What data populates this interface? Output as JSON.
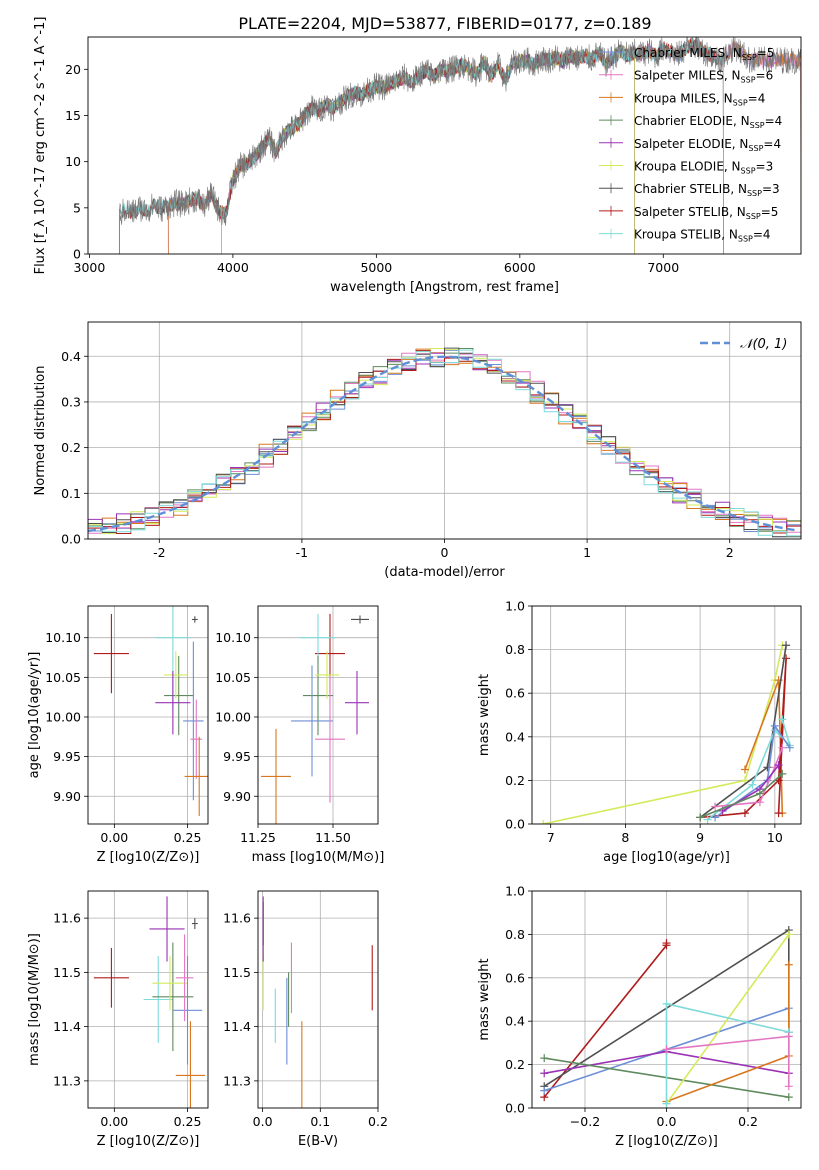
{
  "colors": {
    "Chabrier MILES": "#6d8fd6",
    "Salpeter MILES": "#e377c2",
    "Kroupa MILES": "#d8771f",
    "Chabrier ELODIE": "#5f8a5f",
    "Salpeter ELODIE": "#9a32b5",
    "Kroupa ELODIE": "#d4ea5a",
    "Chabrier STELIB": "#505050",
    "Salpeter STELIB": "#b01c1c",
    "Kroupa STELIB": "#7fdada",
    "normal": "#5f8fd6"
  },
  "chart_data": [
    {
      "type": "line",
      "title": "PLATE=2204, MJD=53877, FIBERID=0177, z=0.189",
      "xlabel": "wavelength [Angstrom, rest frame]",
      "ylabel": "Flux [f_λ 10^-17 erg cm^-2 s^-1 A^-1]",
      "xlim": [
        2990,
        7960
      ],
      "ylim": [
        0,
        23.5
      ],
      "xticks": [
        3000,
        4000,
        5000,
        6000,
        7000
      ],
      "yticks": [
        0,
        5,
        10,
        15,
        20
      ],
      "legend_position": "right",
      "legend": [
        {
          "key": "Chabrier MILES",
          "text": "Chabrier MILES, N",
          "nssp": "=5"
        },
        {
          "key": "Salpeter MILES",
          "text": "Salpeter MILES, N",
          "nssp": "=6"
        },
        {
          "key": "Kroupa MILES",
          "text": "Kroupa MILES, N",
          "nssp": "=4"
        },
        {
          "key": "Chabrier ELODIE",
          "text": "Chabrier ELODIE, N",
          "nssp": "=4"
        },
        {
          "key": "Salpeter ELODIE",
          "text": "Salpeter ELODIE, N",
          "nssp": "=4"
        },
        {
          "key": "Kroupa ELODIE",
          "text": "Kroupa ELODIE, N",
          "nssp": "=3"
        },
        {
          "key": "Chabrier STELIB",
          "text": "Chabrier STELIB, N",
          "nssp": "=3"
        },
        {
          "key": "Salpeter STELIB",
          "text": "Salpeter STELIB, N",
          "nssp": "=5"
        },
        {
          "key": "Kroupa STELIB",
          "text": "Kroupa STELIB, N",
          "nssp": "=4"
        }
      ],
      "legend_subscript": "SSP",
      "data_spectrum": {
        "x": [
          3210,
          3250,
          3300,
          3350,
          3400,
          3450,
          3500,
          3550,
          3600,
          3650,
          3700,
          3750,
          3800,
          3850,
          3900,
          3950,
          4000,
          4050,
          4100,
          4150,
          4200,
          4250,
          4300,
          4350,
          4400,
          4450,
          4500,
          4550,
          4600,
          4650,
          4700,
          4750,
          4800,
          4850,
          4900,
          4950,
          5000,
          5050,
          5100,
          5150,
          5200,
          5250,
          5300,
          5350,
          5400,
          5450,
          5500,
          5550,
          5600,
          5650,
          5700,
          5750,
          5800,
          5850,
          5900,
          5950,
          6000,
          6050,
          6100,
          6150,
          6200,
          6250,
          6300,
          6350,
          6400,
          6450,
          6500,
          6550,
          6600,
          6650,
          6700,
          6750,
          6800,
          6850,
          6900,
          6950,
          7000,
          7100,
          7200,
          7300,
          7400,
          7500,
          7600
        ],
        "y": [
          4.2,
          4.8,
          4.5,
          5.0,
          4.7,
          5.3,
          4.9,
          5.2,
          5.5,
          5.4,
          5.8,
          6.0,
          5.2,
          6.5,
          4.8,
          4.2,
          8.0,
          9.5,
          9.8,
          10.5,
          11.5,
          12.5,
          11.0,
          12.8,
          13.5,
          14.0,
          15.0,
          15.8,
          15.5,
          16.2,
          15.8,
          16.5,
          17.0,
          17.5,
          17.2,
          17.8,
          18.2,
          18.0,
          18.5,
          18.8,
          19.2,
          18.5,
          19.5,
          19.8,
          19.2,
          20.0,
          19.8,
          20.2,
          20.5,
          20.1,
          19.5,
          20.8,
          19.2,
          20.5,
          18.8,
          20.6,
          20.9,
          21.0,
          20.5,
          21.2,
          21.0,
          21.3,
          20.8,
          21.5,
          21.2,
          21.4,
          21.1,
          21.8,
          20.6,
          21.3,
          22.0,
          21.5,
          21.8,
          21.6,
          22.0,
          21.4,
          22.3,
          21.5,
          22.8,
          21.8,
          21.0,
          22.5,
          21.0
        ]
      },
      "model_start": {
        "Chabrier MILES": 3550,
        "Salpeter MILES": 3550,
        "Kroupa MILES": 3550,
        "Chabrier ELODIE": 3920,
        "Salpeter ELODIE": 3920,
        "Kroupa ELODIE": 3920,
        "Chabrier STELIB": 3210,
        "Salpeter STELIB": 3210,
        "Kroupa STELIB": 3210
      },
      "model_end": {
        "Chabrier MILES": 7960,
        "Salpeter MILES": 7960,
        "Kroupa MILES": 7960,
        "Chabrier ELODIE": 6800,
        "Salpeter ELODIE": 6800,
        "Kroupa ELODIE": 6800,
        "Chabrier STELIB": 7420,
        "Salpeter STELIB": 7420,
        "Kroupa STELIB": 7420
      }
    },
    {
      "type": "histogram",
      "xlabel": "(data-model)/error",
      "ylabel": "Normed distribution",
      "xlim": [
        -2.5,
        2.5
      ],
      "ylim": [
        0,
        0.475
      ],
      "xticks": [
        -2,
        -1,
        0,
        1,
        2
      ],
      "yticks": [
        0.0,
        0.1,
        0.2,
        0.3,
        0.4
      ],
      "grid": true,
      "legend_position": "top-right",
      "legend": [
        {
          "key": "normal",
          "text": "𝒩(0, 1)",
          "style": "dashed"
        }
      ],
      "bin_width": 0.1,
      "series": [
        {
          "key": "Chabrier MILES",
          "offset": 0.01
        },
        {
          "key": "Salpeter MILES",
          "offset": -0.012
        },
        {
          "key": "Kroupa MILES",
          "offset": 0.016
        },
        {
          "key": "Chabrier ELODIE",
          "offset": -0.006
        },
        {
          "key": "Salpeter ELODIE",
          "offset": 0.012
        },
        {
          "key": "Kroupa ELODIE",
          "offset": -0.015
        },
        {
          "key": "Chabrier STELIB",
          "offset": 0.005
        },
        {
          "key": "Salpeter STELIB",
          "offset": -0.01
        },
        {
          "key": "Kroupa STELIB",
          "offset": 0.02
        }
      ]
    },
    {
      "type": "errorbar",
      "xlabel": "Z [log10(Z/Z⊙)]",
      "ylabel": "age  [log10(age/yr)]",
      "xlim": [
        -0.09,
        0.32
      ],
      "ylim": [
        9.865,
        10.14
      ],
      "xticks": [
        0.0,
        0.25
      ],
      "xticklabels": [
        "0.00",
        "0.25"
      ],
      "yticks": [
        9.9,
        9.95,
        10.0,
        10.05,
        10.1
      ],
      "yticklabels": [
        "9.90",
        "9.95",
        "10.00",
        "10.05",
        "10.10"
      ],
      "grid": true,
      "points": [
        {
          "key": "Salpeter STELIB",
          "x": -0.01,
          "xerr": 0.06,
          "y": 10.08,
          "yerr": 0.05
        },
        {
          "key": "Kroupa STELIB",
          "x": 0.2,
          "xerr": 0.06,
          "y": 10.1,
          "yerr": 0.09
        },
        {
          "key": "Chabrier STELIB",
          "x": 0.275,
          "xerr": 0.01,
          "y": 10.123,
          "yerr": 0.004
        },
        {
          "key": "Chabrier ELODIE",
          "x": 0.22,
          "xerr": 0.05,
          "y": 10.027,
          "yerr": 0.05
        },
        {
          "key": "Kroupa ELODIE",
          "x": 0.21,
          "xerr": 0.04,
          "y": 10.053,
          "yerr": 0.03
        },
        {
          "key": "Salpeter ELODIE",
          "x": 0.2,
          "xerr": 0.06,
          "y": 10.018,
          "yerr": 0.04
        },
        {
          "key": "Chabrier MILES",
          "x": 0.27,
          "xerr": 0.035,
          "y": 9.995,
          "yerr": 0.1
        },
        {
          "key": "Salpeter MILES",
          "x": 0.28,
          "xerr": 0.02,
          "y": 9.972,
          "yerr": 0.05
        },
        {
          "key": "Kroupa MILES",
          "x": 0.29,
          "xerr": 0.05,
          "y": 9.925,
          "yerr": 0.05
        }
      ]
    },
    {
      "type": "errorbar",
      "xlabel": "mass [log10(M/M⊙)]",
      "ylabel": "",
      "xlim": [
        11.25,
        11.65
      ],
      "ylim": [
        9.865,
        10.14
      ],
      "xticks": [
        11.25,
        11.5
      ],
      "xticklabels": [
        "11.25",
        "11.50"
      ],
      "yticks": [
        9.9,
        9.95,
        10.0,
        10.05,
        10.1
      ],
      "yticklabels": [
        "9.90",
        "9.95",
        "10.00",
        "10.05",
        "10.10"
      ],
      "grid": true,
      "points": [
        {
          "key": "Salpeter STELIB",
          "x": 11.49,
          "xerr": 0.05,
          "y": 10.08,
          "yerr": 0.05
        },
        {
          "key": "Kroupa STELIB",
          "x": 11.45,
          "xerr": 0.06,
          "y": 10.1,
          "yerr": 0.03
        },
        {
          "key": "Chabrier STELIB",
          "x": 11.59,
          "xerr": 0.03,
          "y": 10.123,
          "yerr": 0.005
        },
        {
          "key": "Chabrier ELODIE",
          "x": 11.45,
          "xerr": 0.05,
          "y": 10.027,
          "yerr": 0.05
        },
        {
          "key": "Kroupa ELODIE",
          "x": 11.48,
          "xerr": 0.04,
          "y": 10.053,
          "yerr": 0.03
        },
        {
          "key": "Salpeter ELODIE",
          "x": 11.58,
          "xerr": 0.04,
          "y": 10.018,
          "yerr": 0.04
        },
        {
          "key": "Chabrier MILES",
          "x": 11.43,
          "xerr": 0.07,
          "y": 9.995,
          "yerr": 0.07
        },
        {
          "key": "Salpeter MILES",
          "x": 11.49,
          "xerr": 0.05,
          "y": 9.972,
          "yerr": 0.08
        },
        {
          "key": "Kroupa MILES",
          "x": 11.31,
          "xerr": 0.05,
          "y": 9.925,
          "yerr": 0.06
        }
      ]
    },
    {
      "type": "line",
      "xlabel": "age  [log10(age/yr)]",
      "ylabel": "mass weight",
      "xlim": [
        6.75,
        10.35
      ],
      "ylim": [
        0,
        1.0
      ],
      "xticks": [
        7,
        8,
        9,
        10
      ],
      "yticks": [
        0.0,
        0.2,
        0.4,
        0.6,
        0.8,
        1.0
      ],
      "grid": true,
      "series": [
        {
          "key": "Kroupa ELODIE",
          "x": [
            6.9,
            9.6,
            10.0,
            10.1
          ],
          "y": [
            0.0,
            0.2,
            0.66,
            0.82
          ]
        },
        {
          "key": "Kroupa MILES",
          "x": [
            9.6,
            10.05,
            10.1
          ],
          "y": [
            0.25,
            0.66,
            0.05
          ]
        },
        {
          "key": "Salpeter STELIB",
          "x": [
            9.0,
            9.6,
            10.05,
            10.15,
            10.05
          ],
          "y": [
            0.03,
            0.05,
            0.2,
            0.76,
            0.05
          ]
        },
        {
          "key": "Chabrier STELIB",
          "x": [
            9.0,
            9.9,
            10.15
          ],
          "y": [
            0.03,
            0.26,
            0.82
          ]
        },
        {
          "key": "Kroupa STELIB",
          "x": [
            9.1,
            9.7,
            10.0,
            10.2,
            10.1
          ],
          "y": [
            0.02,
            0.18,
            0.43,
            0.36,
            0.48
          ]
        },
        {
          "key": "Chabrier MILES",
          "x": [
            9.2,
            9.9,
            10.0,
            10.2
          ],
          "y": [
            0.03,
            0.2,
            0.45,
            0.35
          ]
        },
        {
          "key": "Salpeter MILES",
          "x": [
            9.2,
            9.8,
            10.0,
            10.1
          ],
          "y": [
            0.08,
            0.1,
            0.26,
            0.35
          ]
        },
        {
          "key": "Salpeter ELODIE",
          "x": [
            9.3,
            9.8,
            10.05
          ],
          "y": [
            0.06,
            0.16,
            0.27
          ]
        },
        {
          "key": "Chabrier ELODIE",
          "x": [
            9.0,
            9.8,
            10.1
          ],
          "y": [
            0.03,
            0.14,
            0.23
          ]
        }
      ]
    },
    {
      "type": "errorbar",
      "xlabel": "Z [log10(Z/Z⊙)]",
      "ylabel": "mass [log10(M/M⊙)]",
      "xlim": [
        -0.09,
        0.32
      ],
      "ylim": [
        11.25,
        11.65
      ],
      "xticks": [
        0.0,
        0.25
      ],
      "xticklabels": [
        "0.00",
        "0.25"
      ],
      "yticks": [
        11.3,
        11.4,
        11.5,
        11.6
      ],
      "yticklabels": [
        "11.3",
        "11.4",
        "11.5",
        "11.6"
      ],
      "grid": true,
      "points": [
        {
          "key": "Salpeter STELIB",
          "x": -0.01,
          "xerr": 0.06,
          "y": 11.49,
          "yerr": 0.055
        },
        {
          "key": "Kroupa STELIB",
          "x": 0.15,
          "xerr": 0.05,
          "y": 11.45,
          "yerr": 0.08
        },
        {
          "key": "Chabrier STELIB",
          "x": 0.275,
          "xerr": 0.01,
          "y": 11.59,
          "yerr": 0.01
        },
        {
          "key": "Chabrier ELODIE",
          "x": 0.2,
          "xerr": 0.07,
          "y": 11.455,
          "yerr": 0.1
        },
        {
          "key": "Kroupa ELODIE",
          "x": 0.19,
          "xerr": 0.06,
          "y": 11.48,
          "yerr": 0.05
        },
        {
          "key": "Salpeter ELODIE",
          "x": 0.18,
          "xerr": 0.06,
          "y": 11.58,
          "yerr": 0.06
        },
        {
          "key": "Chabrier MILES",
          "x": 0.25,
          "xerr": 0.05,
          "y": 11.43,
          "yerr": 0.1
        },
        {
          "key": "Salpeter MILES",
          "x": 0.24,
          "xerr": 0.03,
          "y": 11.49,
          "yerr": 0.08
        },
        {
          "key": "Kroupa MILES",
          "x": 0.26,
          "xerr": 0.05,
          "y": 11.31,
          "yerr": 0.1
        }
      ]
    },
    {
      "type": "errorbar",
      "xlabel": "E(B-V)",
      "ylabel": "",
      "xlim": [
        -0.008,
        0.2
      ],
      "ylim": [
        11.25,
        11.65
      ],
      "xticks": [
        0.0,
        0.1,
        0.2
      ],
      "xticklabels": [
        "0.0",
        "0.1",
        "0.2"
      ],
      "yticks": [
        11.3,
        11.4,
        11.5,
        11.6
      ],
      "yticklabels": [
        "11.3",
        "11.4",
        "11.5",
        "11.6"
      ],
      "grid": true,
      "points": [
        {
          "key": "Salpeter STELIB",
          "x": 0.19,
          "xerr": 0.0,
          "y": 11.49,
          "yerr": 0.06
        },
        {
          "key": "Kroupa STELIB",
          "x": 0.022,
          "xerr": 0.0,
          "y": 11.42,
          "yerr": 0.05
        },
        {
          "key": "Chabrier STELIB",
          "x": 0.001,
          "xerr": 0.0,
          "y": 11.59,
          "yerr": 0.04
        },
        {
          "key": "Chabrier ELODIE",
          "x": 0.045,
          "xerr": 0.0,
          "y": 11.45,
          "yerr": 0.05
        },
        {
          "key": "Kroupa ELODIE",
          "x": 0.001,
          "xerr": 0.0,
          "y": 11.48,
          "yerr": 0.05
        },
        {
          "key": "Salpeter ELODIE",
          "x": 0.001,
          "xerr": 0.0,
          "y": 11.58,
          "yerr": 0.06
        },
        {
          "key": "Chabrier MILES",
          "x": 0.042,
          "xerr": 0.0,
          "y": 11.41,
          "yerr": 0.08
        },
        {
          "key": "Salpeter MILES",
          "x": 0.05,
          "xerr": 0.0,
          "y": 11.49,
          "yerr": 0.065
        },
        {
          "key": "Kroupa MILES",
          "x": 0.068,
          "xerr": 0.0,
          "y": 11.31,
          "yerr": 0.1
        }
      ]
    },
    {
      "type": "line",
      "xlabel": "Z [log10(Z/Z⊙)]",
      "ylabel": "mass weight",
      "xlim": [
        -0.33,
        0.33
      ],
      "ylim": [
        0,
        1.0
      ],
      "xticks": [
        -0.2,
        0.0,
        0.2
      ],
      "xticklabels": [
        "−0.2",
        "0.0",
        "0.2"
      ],
      "yticks": [
        0.0,
        0.2,
        0.4,
        0.6,
        0.8,
        1.0
      ],
      "grid": true,
      "series": [
        {
          "key": "Salpeter STELIB",
          "x": [
            -0.3,
            0.0,
            0.0
          ],
          "y": [
            0.05,
            0.75,
            0.76
          ]
        },
        {
          "key": "Chabrier STELIB",
          "x": [
            -0.3,
            0.3,
            0.3
          ],
          "y": [
            0.1,
            0.82,
            0.35
          ]
        },
        {
          "key": "Chabrier MILES",
          "x": [
            -0.3,
            0.3,
            0.3
          ],
          "y": [
            0.08,
            0.46,
            0.35
          ]
        },
        {
          "key": "Salpeter ELODIE",
          "x": [
            -0.3,
            0.0,
            0.3
          ],
          "y": [
            0.16,
            0.26,
            0.16
          ]
        },
        {
          "key": "Chabrier ELODIE",
          "x": [
            -0.3,
            0.3
          ],
          "y": [
            0.23,
            0.05
          ]
        },
        {
          "key": "Kroupa MILES",
          "x": [
            0.0,
            0.3,
            0.3
          ],
          "y": [
            0.03,
            0.24,
            0.66
          ]
        },
        {
          "key": "Kroupa ELODIE",
          "x": [
            0.0,
            0.3
          ],
          "y": [
            0.02,
            0.8
          ]
        },
        {
          "key": "Kroupa STELIB",
          "x": [
            0.0,
            0.0,
            0.3
          ],
          "y": [
            0.02,
            0.48,
            0.35
          ]
        },
        {
          "key": "Salpeter MILES",
          "x": [
            0.0,
            0.3,
            0.3
          ],
          "y": [
            0.27,
            0.33,
            0.1
          ]
        }
      ]
    }
  ]
}
